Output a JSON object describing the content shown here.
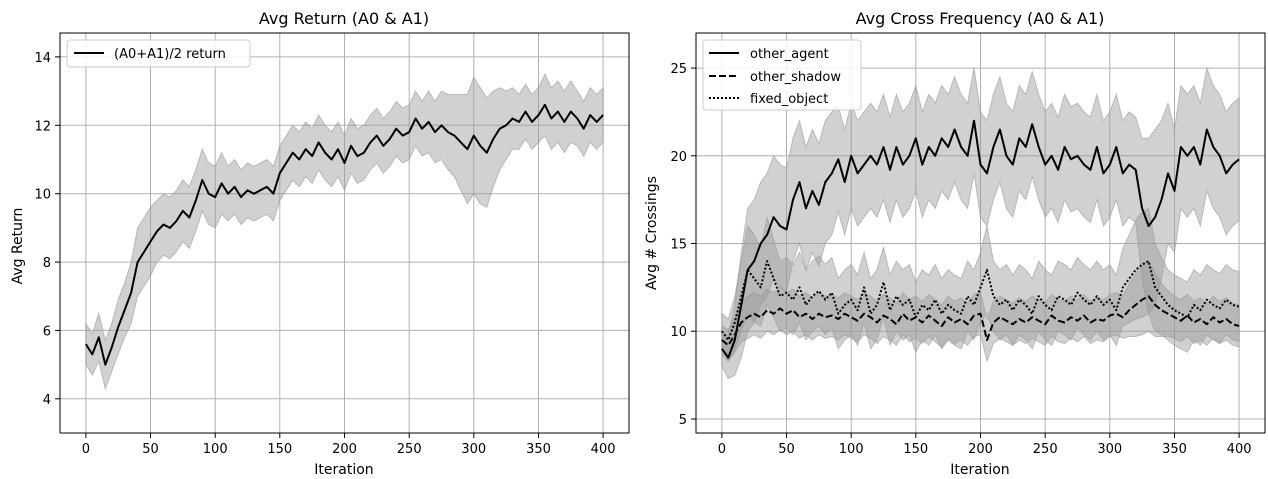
{
  "chart_data": [
    {
      "type": "line",
      "title": "Avg Return (A0 & A1)",
      "xlabel": "Iteration",
      "ylabel": "Avg Return",
      "xlim": [
        -20,
        420
      ],
      "ylim": [
        3.0,
        14.7
      ],
      "xticks": [
        0,
        50,
        100,
        150,
        200,
        250,
        300,
        350,
        400
      ],
      "yticks": [
        4,
        6,
        8,
        10,
        12,
        14
      ],
      "grid": true,
      "legend_position": "top-left",
      "series": [
        {
          "name": "(A0+A1)/2 return",
          "line_style": "solid",
          "color": "#000000",
          "band_color": "#999999",
          "x": [
            0,
            5,
            10,
            15,
            20,
            25,
            30,
            35,
            40,
            45,
            50,
            55,
            60,
            65,
            70,
            75,
            80,
            85,
            90,
            95,
            100,
            105,
            110,
            115,
            120,
            125,
            130,
            135,
            140,
            145,
            150,
            155,
            160,
            165,
            170,
            175,
            180,
            185,
            190,
            195,
            200,
            205,
            210,
            215,
            220,
            225,
            230,
            235,
            240,
            245,
            250,
            255,
            260,
            265,
            270,
            275,
            280,
            285,
            290,
            295,
            300,
            305,
            310,
            315,
            320,
            325,
            330,
            335,
            340,
            345,
            350,
            355,
            360,
            365,
            370,
            375,
            380,
            385,
            390,
            395,
            400
          ],
          "values": [
            5.6,
            5.3,
            5.8,
            5.0,
            5.5,
            6.1,
            6.6,
            7.1,
            8.0,
            8.3,
            8.6,
            8.9,
            9.1,
            9.0,
            9.2,
            9.5,
            9.3,
            9.8,
            10.4,
            10.0,
            9.9,
            10.3,
            10.0,
            10.2,
            9.9,
            10.1,
            10.0,
            10.1,
            10.2,
            10.0,
            10.6,
            10.9,
            11.2,
            11.0,
            11.3,
            11.1,
            11.5,
            11.2,
            11.0,
            11.3,
            10.9,
            11.4,
            11.1,
            11.2,
            11.5,
            11.7,
            11.4,
            11.6,
            11.9,
            11.7,
            11.8,
            12.2,
            11.9,
            12.1,
            11.8,
            12.0,
            11.8,
            11.7,
            11.5,
            11.3,
            11.7,
            11.4,
            11.2,
            11.6,
            11.9,
            12.0,
            12.2,
            12.1,
            12.4,
            12.1,
            12.3,
            12.6,
            12.2,
            12.4,
            12.1,
            12.4,
            12.2,
            11.9,
            12.3,
            12.1,
            12.3
          ],
          "band_spread": [
            0.6,
            0.6,
            0.7,
            0.7,
            0.7,
            0.8,
            0.8,
            0.9,
            1.0,
            1.0,
            1.0,
            0.9,
            0.9,
            0.9,
            0.9,
            0.9,
            0.9,
            0.9,
            0.9,
            0.9,
            0.9,
            0.9,
            0.8,
            0.8,
            0.8,
            0.8,
            0.8,
            0.8,
            0.8,
            0.8,
            0.8,
            0.8,
            0.8,
            0.8,
            0.8,
            0.8,
            0.8,
            0.8,
            0.8,
            0.8,
            0.8,
            0.8,
            0.8,
            0.8,
            0.8,
            0.8,
            0.8,
            0.8,
            0.8,
            0.8,
            0.8,
            0.8,
            0.8,
            0.9,
            0.9,
            1.0,
            1.1,
            1.2,
            1.4,
            1.6,
            1.7,
            1.7,
            1.6,
            1.4,
            1.2,
            1.0,
            0.9,
            0.8,
            0.8,
            0.8,
            0.8,
            0.9,
            0.9,
            0.9,
            0.9,
            0.9,
            0.8,
            0.8,
            0.8,
            0.8,
            0.8
          ]
        }
      ]
    },
    {
      "type": "line",
      "title": "Avg Cross Frequency (A0 & A1)",
      "xlabel": "Iteration",
      "ylabel": "Avg # Crossings",
      "xlim": [
        -20,
        420
      ],
      "ylim": [
        4.2,
        27.0
      ],
      "xticks": [
        0,
        50,
        100,
        150,
        200,
        250,
        300,
        350,
        400
      ],
      "yticks": [
        5,
        10,
        15,
        20,
        25
      ],
      "grid": true,
      "legend_position": "top-left",
      "series": [
        {
          "name": "other_agent",
          "line_style": "solid",
          "color": "#000000",
          "band_color": "#999999",
          "x": [
            0,
            5,
            10,
            15,
            20,
            25,
            30,
            35,
            40,
            45,
            50,
            55,
            60,
            65,
            70,
            75,
            80,
            85,
            90,
            95,
            100,
            105,
            110,
            115,
            120,
            125,
            130,
            135,
            140,
            145,
            150,
            155,
            160,
            165,
            170,
            175,
            180,
            185,
            190,
            195,
            200,
            205,
            210,
            215,
            220,
            225,
            230,
            235,
            240,
            245,
            250,
            255,
            260,
            265,
            270,
            275,
            280,
            285,
            290,
            295,
            300,
            305,
            310,
            315,
            320,
            325,
            330,
            335,
            340,
            345,
            350,
            355,
            360,
            365,
            370,
            375,
            380,
            385,
            390,
            395,
            400
          ],
          "values": [
            9.0,
            8.5,
            9.5,
            11.5,
            13.5,
            14.0,
            15.0,
            15.5,
            16.5,
            16.0,
            15.8,
            17.5,
            18.5,
            17.0,
            18.0,
            17.2,
            18.5,
            19.0,
            19.8,
            18.5,
            20.0,
            19.0,
            19.5,
            20.0,
            19.5,
            20.5,
            19.2,
            20.5,
            19.5,
            20.0,
            21.0,
            19.5,
            20.5,
            20.0,
            21.0,
            20.5,
            21.5,
            20.5,
            20.0,
            22.0,
            19.5,
            19.0,
            20.5,
            21.5,
            20.0,
            19.5,
            21.0,
            20.5,
            21.8,
            20.5,
            19.5,
            20.0,
            19.2,
            20.5,
            19.8,
            20.0,
            19.5,
            19.2,
            20.5,
            19.0,
            19.5,
            20.5,
            19.0,
            19.5,
            19.2,
            17.0,
            16.0,
            16.5,
            17.5,
            19.0,
            18.0,
            20.5,
            20.0,
            20.5,
            19.5,
            21.5,
            20.5,
            20.0,
            19.0,
            19.5,
            19.8
          ],
          "band_spread": [
            1.0,
            1.2,
            2.0,
            3.0,
            3.5,
            3.5,
            3.5,
            3.5,
            3.5,
            3.5,
            3.5,
            3.5,
            3.5,
            3.5,
            3.5,
            3.5,
            3.5,
            3.5,
            3.0,
            3.0,
            3.0,
            3.0,
            3.0,
            3.0,
            3.0,
            3.0,
            3.0,
            3.0,
            3.0,
            3.0,
            3.0,
            3.0,
            3.0,
            3.0,
            3.0,
            3.0,
            3.0,
            3.0,
            3.0,
            3.0,
            3.0,
            3.0,
            3.0,
            3.0,
            3.0,
            3.0,
            3.0,
            3.0,
            3.0,
            3.0,
            3.0,
            3.0,
            3.0,
            3.0,
            3.0,
            3.0,
            3.0,
            3.0,
            3.0,
            3.0,
            3.0,
            3.0,
            3.0,
            3.0,
            3.0,
            4.0,
            5.0,
            5.0,
            4.5,
            4.0,
            3.5,
            3.5,
            3.5,
            3.5,
            3.5,
            3.5,
            3.5,
            3.5,
            3.5,
            3.5,
            3.5
          ]
        },
        {
          "name": "other_shadow",
          "line_style": "dashed",
          "color": "#000000",
          "band_color": "#999999",
          "x": [
            0,
            5,
            10,
            15,
            20,
            25,
            30,
            35,
            40,
            45,
            50,
            55,
            60,
            65,
            70,
            75,
            80,
            85,
            90,
            95,
            100,
            105,
            110,
            115,
            120,
            125,
            130,
            135,
            140,
            145,
            150,
            155,
            160,
            165,
            170,
            175,
            180,
            185,
            190,
            195,
            200,
            205,
            210,
            215,
            220,
            225,
            230,
            235,
            240,
            245,
            250,
            255,
            260,
            265,
            270,
            275,
            280,
            285,
            290,
            295,
            300,
            305,
            310,
            315,
            320,
            325,
            330,
            335,
            340,
            345,
            350,
            355,
            360,
            365,
            370,
            375,
            380,
            385,
            390,
            395,
            400
          ],
          "values": [
            9.5,
            9.2,
            9.8,
            10.5,
            10.8,
            11.0,
            10.8,
            11.2,
            11.0,
            11.3,
            11.0,
            11.2,
            10.8,
            11.0,
            10.7,
            11.0,
            10.8,
            10.9,
            10.7,
            11.0,
            10.8,
            10.6,
            11.0,
            10.8,
            10.5,
            10.9,
            10.7,
            10.4,
            11.0,
            10.6,
            10.8,
            10.5,
            10.9,
            10.6,
            10.3,
            10.8,
            10.5,
            10.7,
            10.4,
            10.9,
            11.0,
            9.5,
            10.5,
            10.8,
            10.6,
            10.4,
            10.7,
            10.5,
            10.8,
            10.6,
            10.4,
            10.9,
            10.6,
            10.5,
            10.8,
            10.6,
            10.9,
            10.5,
            10.7,
            10.6,
            10.9,
            11.0,
            10.8,
            11.2,
            11.5,
            11.8,
            12.0,
            11.5,
            11.2,
            11.0,
            10.8,
            10.6,
            10.9,
            10.5,
            10.7,
            10.4,
            10.8,
            10.5,
            10.7,
            10.4,
            10.3
          ],
          "band_spread": [
            0.8,
            0.9,
            1.0,
            1.1,
            1.2,
            1.2,
            1.2,
            1.2,
            1.2,
            1.2,
            1.2,
            1.2,
            1.2,
            1.2,
            1.2,
            1.2,
            1.2,
            1.2,
            1.2,
            1.2,
            1.2,
            1.2,
            1.2,
            1.2,
            1.2,
            1.2,
            1.2,
            1.2,
            1.2,
            1.2,
            1.2,
            1.2,
            1.2,
            1.2,
            1.2,
            1.2,
            1.2,
            1.2,
            1.2,
            1.2,
            1.2,
            1.2,
            1.2,
            1.2,
            1.2,
            1.2,
            1.2,
            1.2,
            1.2,
            1.2,
            1.2,
            1.2,
            1.2,
            1.2,
            1.2,
            1.2,
            1.2,
            1.2,
            1.2,
            1.2,
            1.2,
            1.2,
            1.2,
            1.5,
            1.8,
            2.0,
            2.0,
            1.8,
            1.5,
            1.3,
            1.2,
            1.2,
            1.2,
            1.2,
            1.2,
            1.2,
            1.2,
            1.2,
            1.2,
            1.2,
            1.2
          ]
        },
        {
          "name": "fixed_object",
          "line_style": "dotted",
          "color": "#000000",
          "band_color": "#999999",
          "x": [
            0,
            5,
            10,
            15,
            20,
            25,
            30,
            35,
            40,
            45,
            50,
            55,
            60,
            65,
            70,
            75,
            80,
            85,
            90,
            95,
            100,
            105,
            110,
            115,
            120,
            125,
            130,
            135,
            140,
            145,
            150,
            155,
            160,
            165,
            170,
            175,
            180,
            185,
            190,
            195,
            200,
            205,
            210,
            215,
            220,
            225,
            230,
            235,
            240,
            245,
            250,
            255,
            260,
            265,
            270,
            275,
            280,
            285,
            290,
            295,
            300,
            305,
            310,
            315,
            320,
            325,
            330,
            335,
            340,
            345,
            350,
            355,
            360,
            365,
            370,
            375,
            380,
            385,
            390,
            395,
            400
          ],
          "values": [
            10.0,
            9.5,
            10.5,
            12.0,
            13.5,
            13.0,
            12.5,
            14.0,
            13.0,
            12.0,
            12.2,
            11.8,
            12.5,
            11.5,
            12.0,
            12.3,
            11.8,
            12.2,
            11.0,
            11.5,
            11.8,
            11.2,
            12.5,
            11.0,
            11.5,
            12.8,
            11.2,
            12.0,
            11.5,
            11.8,
            10.8,
            11.5,
            11.2,
            11.8,
            11.0,
            11.5,
            11.2,
            11.0,
            12.0,
            11.5,
            12.5,
            13.5,
            12.0,
            11.5,
            11.8,
            11.2,
            11.8,
            11.5,
            11.0,
            12.0,
            11.5,
            11.2,
            12.0,
            11.8,
            11.5,
            12.2,
            11.8,
            11.5,
            12.0,
            11.5,
            11.8,
            11.2,
            12.5,
            13.0,
            13.5,
            13.8,
            14.0,
            12.5,
            12.0,
            11.5,
            11.2,
            11.0,
            10.8,
            11.5,
            11.2,
            11.8,
            11.5,
            11.3,
            11.8,
            11.5,
            11.4
          ],
          "band_spread": [
            1.0,
            1.2,
            1.5,
            2.0,
            2.5,
            2.5,
            2.2,
            2.5,
            2.2,
            2.0,
            2.0,
            2.0,
            2.0,
            2.0,
            2.0,
            2.0,
            2.0,
            2.0,
            2.0,
            2.0,
            2.0,
            2.0,
            2.0,
            2.0,
            2.0,
            2.0,
            2.0,
            2.0,
            2.0,
            2.0,
            2.0,
            2.0,
            2.0,
            2.0,
            2.0,
            2.0,
            2.0,
            2.0,
            2.0,
            2.0,
            2.0,
            2.5,
            2.0,
            2.0,
            2.0,
            2.0,
            2.0,
            2.0,
            2.0,
            2.0,
            2.0,
            2.0,
            2.0,
            2.0,
            2.0,
            2.0,
            2.0,
            2.0,
            2.0,
            2.0,
            2.0,
            2.0,
            2.2,
            2.5,
            2.8,
            3.0,
            3.0,
            2.5,
            2.2,
            2.0,
            2.0,
            2.0,
            2.0,
            2.0,
            2.0,
            2.0,
            2.0,
            2.0,
            2.0,
            2.0,
            2.0
          ]
        }
      ]
    }
  ]
}
